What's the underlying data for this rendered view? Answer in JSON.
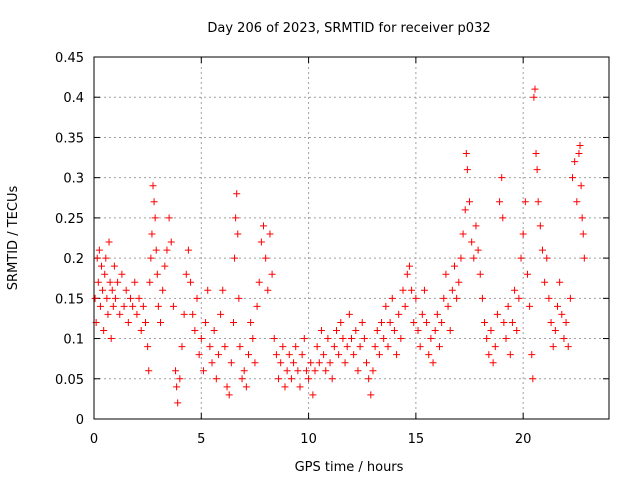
{
  "chart_data": {
    "type": "scatter",
    "title": "Day 206 of 2023, SRMTID for receiver p032",
    "xlabel": "GPS time / hours",
    "ylabel": "SRMTID / TECUs",
    "xlim": [
      0,
      24
    ],
    "ylim": [
      0,
      0.45
    ],
    "xticks": [
      0,
      5,
      10,
      15,
      20
    ],
    "xtick_labels": [
      "0",
      "5",
      "10",
      "15",
      "20"
    ],
    "yticks": [
      0,
      0.05,
      0.1,
      0.15,
      0.2,
      0.25,
      0.3,
      0.35,
      0.4,
      0.45
    ],
    "ytick_labels": [
      "0",
      "0.05",
      "0.1",
      "0.15",
      "0.2",
      "0.25",
      "0.3",
      "0.35",
      "0.4",
      "0.45"
    ],
    "grid": true,
    "marker": "+",
    "color": "#ff0000",
    "series": [
      {
        "name": "SRMTID",
        "points": [
          [
            0.05,
            0.15
          ],
          [
            0.1,
            0.12
          ],
          [
            0.15,
            0.2
          ],
          [
            0.2,
            0.17
          ],
          [
            0.25,
            0.21
          ],
          [
            0.3,
            0.14
          ],
          [
            0.35,
            0.19
          ],
          [
            0.4,
            0.16
          ],
          [
            0.45,
            0.11
          ],
          [
            0.5,
            0.18
          ],
          [
            0.55,
            0.2
          ],
          [
            0.6,
            0.15
          ],
          [
            0.65,
            0.13
          ],
          [
            0.7,
            0.22
          ],
          [
            0.75,
            0.17
          ],
          [
            0.8,
            0.1
          ],
          [
            0.85,
            0.16
          ],
          [
            0.9,
            0.14
          ],
          [
            0.95,
            0.19
          ],
          [
            1.0,
            0.15
          ],
          [
            1.1,
            0.17
          ],
          [
            1.2,
            0.13
          ],
          [
            1.3,
            0.18
          ],
          [
            1.4,
            0.14
          ],
          [
            1.5,
            0.16
          ],
          [
            1.6,
            0.12
          ],
          [
            1.7,
            0.15
          ],
          [
            1.8,
            0.14
          ],
          [
            1.9,
            0.17
          ],
          [
            2.0,
            0.13
          ],
          [
            2.1,
            0.15
          ],
          [
            2.2,
            0.11
          ],
          [
            2.3,
            0.14
          ],
          [
            2.4,
            0.12
          ],
          [
            2.5,
            0.09
          ],
          [
            2.55,
            0.06
          ],
          [
            2.6,
            0.17
          ],
          [
            2.65,
            0.2
          ],
          [
            2.7,
            0.23
          ],
          [
            2.75,
            0.29
          ],
          [
            2.8,
            0.27
          ],
          [
            2.85,
            0.25
          ],
          [
            2.9,
            0.21
          ],
          [
            2.95,
            0.18
          ],
          [
            3.0,
            0.14
          ],
          [
            3.1,
            0.12
          ],
          [
            3.2,
            0.16
          ],
          [
            3.3,
            0.19
          ],
          [
            3.4,
            0.21
          ],
          [
            3.5,
            0.25
          ],
          [
            3.6,
            0.22
          ],
          [
            3.7,
            0.14
          ],
          [
            3.8,
            0.06
          ],
          [
            3.85,
            0.04
          ],
          [
            3.9,
            0.02
          ],
          [
            4.0,
            0.05
          ],
          [
            4.1,
            0.09
          ],
          [
            4.2,
            0.13
          ],
          [
            4.3,
            0.18
          ],
          [
            4.4,
            0.21
          ],
          [
            4.5,
            0.17
          ],
          [
            4.6,
            0.13
          ],
          [
            4.7,
            0.11
          ],
          [
            4.8,
            0.15
          ],
          [
            4.9,
            0.08
          ],
          [
            5.0,
            0.1
          ],
          [
            5.1,
            0.06
          ],
          [
            5.2,
            0.12
          ],
          [
            5.3,
            0.16
          ],
          [
            5.4,
            0.09
          ],
          [
            5.5,
            0.07
          ],
          [
            5.6,
            0.11
          ],
          [
            5.7,
            0.05
          ],
          [
            5.8,
            0.08
          ],
          [
            5.9,
            0.13
          ],
          [
            6.0,
            0.16
          ],
          [
            6.1,
            0.09
          ],
          [
            6.2,
            0.04
          ],
          [
            6.3,
            0.03
          ],
          [
            6.4,
            0.07
          ],
          [
            6.5,
            0.12
          ],
          [
            6.55,
            0.2
          ],
          [
            6.6,
            0.25
          ],
          [
            6.65,
            0.28
          ],
          [
            6.7,
            0.23
          ],
          [
            6.75,
            0.15
          ],
          [
            6.8,
            0.09
          ],
          [
            6.9,
            0.05
          ],
          [
            7.0,
            0.06
          ],
          [
            7.1,
            0.04
          ],
          [
            7.2,
            0.08
          ],
          [
            7.3,
            0.12
          ],
          [
            7.4,
            0.1
          ],
          [
            7.5,
            0.07
          ],
          [
            7.6,
            0.14
          ],
          [
            7.7,
            0.17
          ],
          [
            7.8,
            0.22
          ],
          [
            7.9,
            0.24
          ],
          [
            8.0,
            0.2
          ],
          [
            8.1,
            0.16
          ],
          [
            8.2,
            0.23
          ],
          [
            8.3,
            0.18
          ],
          [
            8.4,
            0.1
          ],
          [
            8.5,
            0.08
          ],
          [
            8.6,
            0.05
          ],
          [
            8.7,
            0.07
          ],
          [
            8.8,
            0.09
          ],
          [
            8.9,
            0.04
          ],
          [
            9.0,
            0.06
          ],
          [
            9.1,
            0.08
          ],
          [
            9.2,
            0.05
          ],
          [
            9.3,
            0.07
          ],
          [
            9.4,
            0.09
          ],
          [
            9.5,
            0.06
          ],
          [
            9.6,
            0.04
          ],
          [
            9.7,
            0.08
          ],
          [
            9.8,
            0.1
          ],
          [
            9.9,
            0.06
          ],
          [
            10.0,
            0.05
          ],
          [
            10.1,
            0.07
          ],
          [
            10.2,
            0.03
          ],
          [
            10.3,
            0.06
          ],
          [
            10.4,
            0.09
          ],
          [
            10.5,
            0.07
          ],
          [
            10.6,
            0.11
          ],
          [
            10.7,
            0.08
          ],
          [
            10.8,
            0.06
          ],
          [
            10.9,
            0.1
          ],
          [
            11.0,
            0.07
          ],
          [
            11.1,
            0.05
          ],
          [
            11.2,
            0.09
          ],
          [
            11.3,
            0.11
          ],
          [
            11.4,
            0.08
          ],
          [
            11.5,
            0.12
          ],
          [
            11.6,
            0.1
          ],
          [
            11.7,
            0.07
          ],
          [
            11.8,
            0.09
          ],
          [
            11.9,
            0.13
          ],
          [
            12.0,
            0.1
          ],
          [
            12.1,
            0.08
          ],
          [
            12.2,
            0.11
          ],
          [
            12.3,
            0.06
          ],
          [
            12.4,
            0.09
          ],
          [
            12.5,
            0.12
          ],
          [
            12.6,
            0.1
          ],
          [
            12.7,
            0.07
          ],
          [
            12.8,
            0.05
          ],
          [
            12.9,
            0.03
          ],
          [
            13.0,
            0.06
          ],
          [
            13.1,
            0.09
          ],
          [
            13.2,
            0.11
          ],
          [
            13.3,
            0.08
          ],
          [
            13.4,
            0.12
          ],
          [
            13.5,
            0.1
          ],
          [
            13.6,
            0.14
          ],
          [
            13.7,
            0.09
          ],
          [
            13.8,
            0.12
          ],
          [
            13.9,
            0.15
          ],
          [
            14.0,
            0.11
          ],
          [
            14.1,
            0.08
          ],
          [
            14.2,
            0.13
          ],
          [
            14.3,
            0.1
          ],
          [
            14.4,
            0.16
          ],
          [
            14.5,
            0.14
          ],
          [
            14.6,
            0.18
          ],
          [
            14.7,
            0.19
          ],
          [
            14.8,
            0.16
          ],
          [
            14.9,
            0.12
          ],
          [
            15.0,
            0.15
          ],
          [
            15.1,
            0.11
          ],
          [
            15.2,
            0.09
          ],
          [
            15.3,
            0.13
          ],
          [
            15.4,
            0.16
          ],
          [
            15.5,
            0.12
          ],
          [
            15.6,
            0.08
          ],
          [
            15.7,
            0.1
          ],
          [
            15.8,
            0.07
          ],
          [
            15.9,
            0.11
          ],
          [
            16.0,
            0.13
          ],
          [
            16.1,
            0.09
          ],
          [
            16.2,
            0.12
          ],
          [
            16.3,
            0.15
          ],
          [
            16.4,
            0.18
          ],
          [
            16.5,
            0.14
          ],
          [
            16.6,
            0.11
          ],
          [
            16.7,
            0.16
          ],
          [
            16.8,
            0.19
          ],
          [
            16.9,
            0.15
          ],
          [
            17.0,
            0.17
          ],
          [
            17.1,
            0.2
          ],
          [
            17.2,
            0.23
          ],
          [
            17.3,
            0.26
          ],
          [
            17.35,
            0.33
          ],
          [
            17.4,
            0.31
          ],
          [
            17.5,
            0.27
          ],
          [
            17.6,
            0.22
          ],
          [
            17.7,
            0.2
          ],
          [
            17.8,
            0.24
          ],
          [
            17.9,
            0.21
          ],
          [
            18.0,
            0.18
          ],
          [
            18.1,
            0.15
          ],
          [
            18.2,
            0.12
          ],
          [
            18.3,
            0.1
          ],
          [
            18.4,
            0.08
          ],
          [
            18.5,
            0.11
          ],
          [
            18.6,
            0.07
          ],
          [
            18.7,
            0.09
          ],
          [
            18.8,
            0.13
          ],
          [
            18.9,
            0.27
          ],
          [
            19.0,
            0.3
          ],
          [
            19.05,
            0.25
          ],
          [
            19.1,
            0.12
          ],
          [
            19.2,
            0.1
          ],
          [
            19.3,
            0.14
          ],
          [
            19.4,
            0.08
          ],
          [
            19.5,
            0.12
          ],
          [
            19.6,
            0.16
          ],
          [
            19.7,
            0.11
          ],
          [
            19.8,
            0.15
          ],
          [
            19.9,
            0.2
          ],
          [
            20.0,
            0.23
          ],
          [
            20.1,
            0.27
          ],
          [
            20.2,
            0.18
          ],
          [
            20.3,
            0.14
          ],
          [
            20.4,
            0.08
          ],
          [
            20.45,
            0.05
          ],
          [
            20.5,
            0.4
          ],
          [
            20.55,
            0.41
          ],
          [
            20.6,
            0.33
          ],
          [
            20.65,
            0.31
          ],
          [
            20.7,
            0.27
          ],
          [
            20.8,
            0.24
          ],
          [
            20.9,
            0.21
          ],
          [
            21.0,
            0.17
          ],
          [
            21.1,
            0.2
          ],
          [
            21.2,
            0.15
          ],
          [
            21.3,
            0.12
          ],
          [
            21.4,
            0.09
          ],
          [
            21.5,
            0.11
          ],
          [
            21.6,
            0.14
          ],
          [
            21.7,
            0.17
          ],
          [
            21.8,
            0.13
          ],
          [
            21.9,
            0.1
          ],
          [
            22.0,
            0.12
          ],
          [
            22.1,
            0.09
          ],
          [
            22.2,
            0.15
          ],
          [
            22.3,
            0.3
          ],
          [
            22.4,
            0.32
          ],
          [
            22.5,
            0.27
          ],
          [
            22.6,
            0.33
          ],
          [
            22.65,
            0.34
          ],
          [
            22.7,
            0.29
          ],
          [
            22.75,
            0.25
          ],
          [
            22.8,
            0.23
          ],
          [
            22.85,
            0.2
          ]
        ]
      }
    ]
  },
  "colors": {
    "marker": "#ff0000",
    "grid": "#a0a0a0",
    "axis": "#000000"
  }
}
